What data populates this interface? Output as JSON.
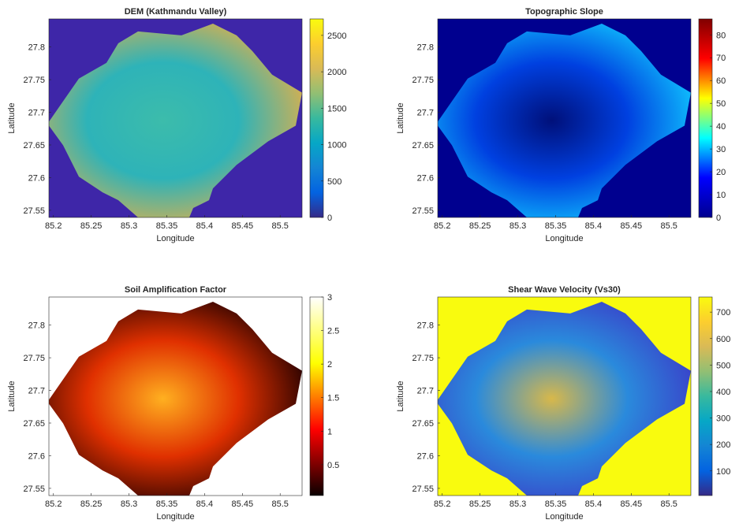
{
  "chart_data": [
    {
      "type": "heatmap",
      "title": "DEM (Kathmandu Valley)",
      "xlabel": "Longitude",
      "ylabel": "Latitude",
      "colormap": "parula",
      "xlim": [
        85.194,
        85.529
      ],
      "ylim": [
        27.539,
        27.843
      ],
      "xticks": [
        85.2,
        85.25,
        85.3,
        85.35,
        85.4,
        85.45,
        85.5
      ],
      "yticks": [
        27.55,
        27.6,
        27.65,
        27.7,
        27.75,
        27.8
      ],
      "clim": [
        0,
        2726
      ],
      "cticks": [
        0,
        500,
        1000,
        1500,
        2000,
        2500
      ]
    },
    {
      "type": "heatmap",
      "title": "Topographic Slope",
      "xlabel": "Longitude",
      "ylabel": "Latitude",
      "colormap": "jet",
      "xlim": [
        85.194,
        85.529
      ],
      "ylim": [
        27.539,
        27.843
      ],
      "xticks": [
        85.2,
        85.25,
        85.3,
        85.35,
        85.4,
        85.45,
        85.5
      ],
      "yticks": [
        27.55,
        27.6,
        27.65,
        27.7,
        27.75,
        27.8
      ],
      "clim": [
        0,
        87
      ],
      "cticks": [
        0,
        10,
        20,
        30,
        40,
        50,
        60,
        70,
        80
      ]
    },
    {
      "type": "heatmap",
      "title": "Soil Amplification Factor",
      "xlabel": "Longitude",
      "ylabel": "Latitude",
      "colormap": "hot",
      "xlim": [
        85.194,
        85.529
      ],
      "ylim": [
        27.539,
        27.843
      ],
      "xticks": [
        85.2,
        85.25,
        85.3,
        85.35,
        85.4,
        85.45,
        85.5
      ],
      "yticks": [
        27.55,
        27.6,
        27.65,
        27.7,
        27.75,
        27.8
      ],
      "clim": [
        0.04,
        3
      ],
      "cticks": [
        0.5,
        1,
        1.5,
        2,
        2.5,
        3
      ]
    },
    {
      "type": "heatmap",
      "title": "Shear Wave Velocity (Vs30)",
      "xlabel": "Longitude",
      "ylabel": "Latitude",
      "colormap": "parula-inverse-bg",
      "xlim": [
        85.194,
        85.529
      ],
      "ylim": [
        27.539,
        27.843
      ],
      "xticks": [
        85.2,
        85.25,
        85.3,
        85.35,
        85.4,
        85.45,
        85.5
      ],
      "yticks": [
        27.55,
        27.6,
        27.65,
        27.7,
        27.75,
        27.8
      ],
      "clim": [
        7,
        757
      ],
      "cticks": [
        100,
        200,
        300,
        400,
        500,
        600,
        700
      ]
    }
  ]
}
